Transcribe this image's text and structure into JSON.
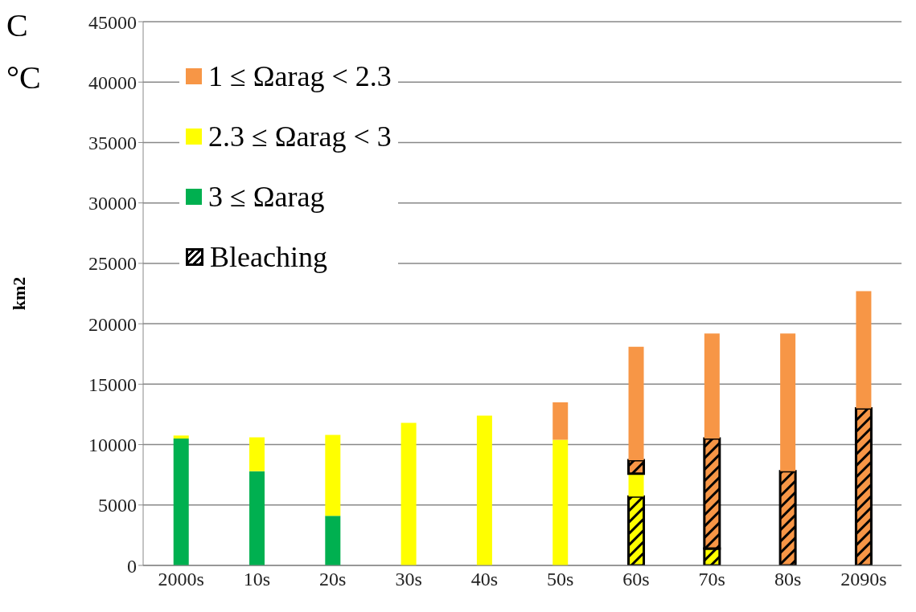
{
  "chart_data": {
    "type": "bar",
    "stacked": true,
    "ylabel": "km2",
    "annotations": [
      "C",
      "°C"
    ],
    "categories": [
      "2000s",
      "10s",
      "20s",
      "30s",
      "40s",
      "50s",
      "60s",
      "70s",
      "80s",
      "2090s"
    ],
    "series": [
      {
        "name": "3 ≤ Ωarag",
        "color": "#00b050",
        "values": [
          10500,
          7800,
          4100,
          null,
          null,
          null,
          null,
          null,
          null,
          null
        ]
      },
      {
        "name": "Bleaching",
        "color": "#000000",
        "values": [
          null,
          null,
          null,
          null,
          null,
          null,
          5700,
          1400,
          null,
          null
        ]
      },
      {
        "name": "2.3 ≤ Ωarag < 3",
        "color": "#ffff00",
        "values": [
          250,
          2800,
          6700,
          11800,
          12400,
          10400,
          1900,
          null,
          null,
          null
        ]
      },
      {
        "color": "#000000",
        "values": [
          null,
          null,
          null,
          null,
          null,
          null,
          1100,
          9100,
          7800,
          13000
        ]
      },
      {
        "name": "1 ≤ Ωarag < 2.3",
        "color": "#f79646",
        "values": [
          null,
          null,
          null,
          null,
          null,
          3100,
          9400,
          8700,
          11400,
          9700
        ]
      }
    ],
    "ylim": [
      0,
      45000
    ],
    "yticks": [
      0,
      5000,
      10000,
      15000,
      20000,
      25000,
      30000,
      35000,
      40000,
      45000
    ],
    "grid": "y",
    "legend": "top left"
  }
}
